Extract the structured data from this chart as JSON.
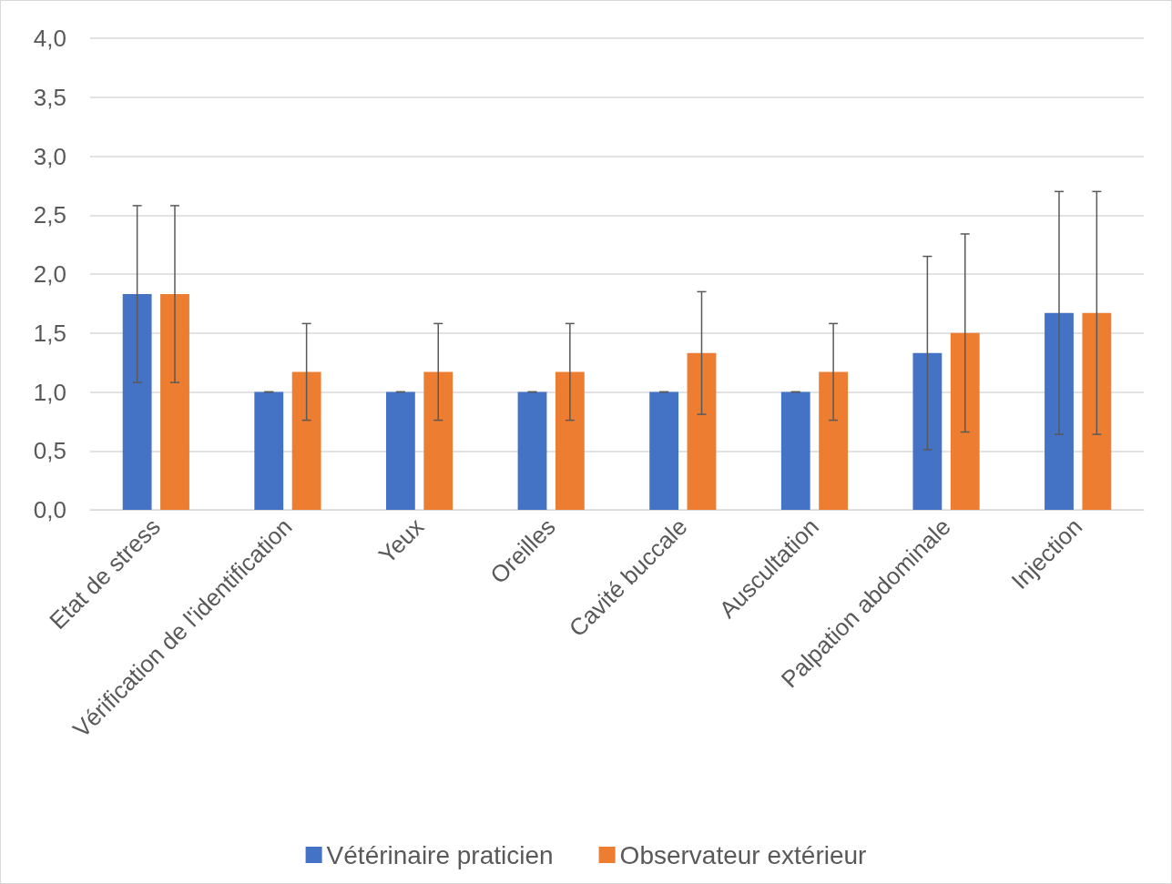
{
  "chart_data": {
    "type": "bar",
    "categories": [
      "Etat de stress",
      "Vérification de l'identification",
      "Yeux",
      "Oreilles",
      "Cavité buccale",
      "Auscultation",
      "Palpation abdominale",
      "Injection"
    ],
    "series": [
      {
        "name": "Vétérinaire praticien",
        "color": "#4472c4",
        "values": [
          1.83,
          1.0,
          1.0,
          1.0,
          1.0,
          1.0,
          1.33,
          1.67
        ],
        "errors": [
          0.75,
          0,
          0,
          0,
          0,
          0,
          0.82,
          1.03
        ]
      },
      {
        "name": "Observateur extérieur",
        "color": "#ed7d31",
        "values": [
          1.83,
          1.17,
          1.17,
          1.17,
          1.33,
          1.17,
          1.5,
          1.67
        ],
        "errors": [
          0.75,
          0.41,
          0.41,
          0.41,
          0.52,
          0.41,
          0.84,
          1.03
        ]
      }
    ],
    "ylim": [
      0,
      4
    ],
    "yticks": [
      {
        "value": 0,
        "label": "0,0"
      },
      {
        "value": 0.5,
        "label": "0,5"
      },
      {
        "value": 1,
        "label": "1,0"
      },
      {
        "value": 1.5,
        "label": "1,5"
      },
      {
        "value": 2,
        "label": "2,0"
      },
      {
        "value": 2.5,
        "label": "2,5"
      },
      {
        "value": 3,
        "label": "3,0"
      },
      {
        "value": 3.5,
        "label": "3,5"
      },
      {
        "value": 4,
        "label": "4,0"
      }
    ],
    "grid": "y",
    "legend": "bottom"
  }
}
